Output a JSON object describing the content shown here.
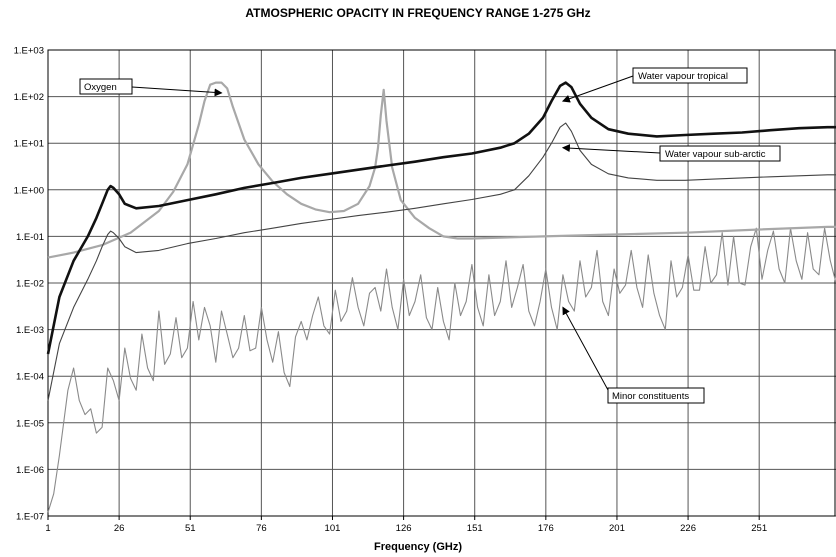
{
  "chart_data": {
    "type": "line",
    "title": "ATMOSPHERIC OPACITY IN FREQUENCY RANGE 1-275 GHz",
    "xlabel": "Frequency (GHz)",
    "ylabel": "",
    "xlim": [
      1,
      278
    ],
    "ylim": [
      1e-07,
      1000
    ],
    "y_scale": "log",
    "grid": true,
    "x_ticks": [
      "1",
      "26",
      "51",
      "76",
      "101",
      "126",
      "151",
      "176",
      "201",
      "226",
      "251"
    ],
    "y_ticks": [
      "1.E-07",
      "1.E-06",
      "1.E-05",
      "1.E-04",
      "1.E-03",
      "1.E-02",
      "1.E-01",
      "1.E+00",
      "1.E+01",
      "1.E+02",
      "1.E+03"
    ],
    "series": [
      {
        "name": "Water vapour tropical",
        "color": "#111111",
        "x": [
          1,
          5,
          10,
          15,
          18,
          20,
          22,
          23,
          24,
          26,
          28,
          32,
          40,
          50,
          60,
          70,
          80,
          90,
          100,
          110,
          120,
          130,
          140,
          150,
          160,
          165,
          170,
          175,
          178,
          181,
          183,
          185,
          188,
          192,
          198,
          205,
          215,
          225,
          235,
          245,
          255,
          265,
          275,
          278
        ],
        "values": [
          0.0003,
          0.005,
          0.03,
          0.1,
          0.25,
          0.5,
          1.0,
          1.2,
          1.1,
          0.8,
          0.5,
          0.4,
          0.45,
          0.6,
          0.8,
          1.1,
          1.4,
          1.8,
          2.2,
          2.7,
          3.3,
          4.0,
          5.0,
          6.0,
          8.0,
          10,
          16,
          35,
          80,
          170,
          200,
          160,
          70,
          35,
          20,
          16,
          14,
          15,
          16,
          17,
          19,
          21,
          22,
          22
        ]
      },
      {
        "name": "Water vapour sub-arctic",
        "color": "#444444",
        "x": [
          1,
          5,
          10,
          15,
          18,
          20,
          22,
          23,
          24,
          26,
          28,
          32,
          40,
          50,
          60,
          70,
          80,
          90,
          100,
          110,
          120,
          130,
          140,
          150,
          160,
          165,
          170,
          175,
          178,
          181,
          183,
          185,
          188,
          192,
          198,
          205,
          215,
          225,
          235,
          245,
          255,
          265,
          275,
          278
        ],
        "values": [
          3e-05,
          0.0005,
          0.003,
          0.012,
          0.03,
          0.06,
          0.11,
          0.13,
          0.12,
          0.09,
          0.06,
          0.045,
          0.05,
          0.07,
          0.09,
          0.12,
          0.15,
          0.19,
          0.23,
          0.28,
          0.33,
          0.4,
          0.5,
          0.62,
          0.8,
          1.0,
          2.0,
          5.0,
          10,
          22,
          27,
          18,
          7,
          3.5,
          2.2,
          1.8,
          1.6,
          1.6,
          1.7,
          1.8,
          1.9,
          2.0,
          2.1,
          2.1
        ]
      },
      {
        "name": "Oxygen",
        "color": "#a8a8a8",
        "x": [
          1,
          10,
          20,
          30,
          40,
          45,
          50,
          54,
          56,
          58,
          60,
          62,
          64,
          66,
          70,
          75,
          80,
          85,
          90,
          95,
          100,
          105,
          110,
          114,
          116,
          117,
          118,
          119,
          120,
          122,
          125,
          130,
          135,
          140,
          145,
          150,
          175,
          200,
          225,
          250,
          275,
          278
        ],
        "values": [
          0.035,
          0.045,
          0.065,
          0.12,
          0.35,
          0.9,
          3.5,
          25,
          80,
          180,
          200,
          200,
          150,
          60,
          12,
          3.5,
          1.5,
          0.8,
          0.5,
          0.38,
          0.33,
          0.35,
          0.5,
          1.2,
          3.0,
          8.0,
          40,
          140,
          30,
          3.0,
          0.6,
          0.25,
          0.15,
          0.1,
          0.09,
          0.09,
          0.1,
          0.11,
          0.12,
          0.14,
          0.16,
          0.16
        ]
      },
      {
        "name": "Minor constituents",
        "color": "#8a8a8a",
        "x": [
          1,
          3,
          5,
          8,
          10,
          12,
          14,
          16,
          18,
          20,
          22,
          24,
          26,
          28,
          30,
          32,
          34,
          36,
          38,
          40,
          42,
          44,
          46,
          48,
          50,
          52,
          54,
          56,
          58,
          60,
          62,
          64,
          66,
          68,
          70,
          72,
          74,
          76,
          78,
          80,
          82,
          84,
          86,
          88,
          90,
          92,
          94,
          96,
          98,
          100,
          102,
          104,
          106,
          108,
          110,
          112,
          114,
          116,
          118,
          120,
          122,
          124,
          126,
          128,
          130,
          132,
          134,
          136,
          138,
          140,
          142,
          144,
          146,
          148,
          150,
          152,
          154,
          156,
          158,
          160,
          162,
          164,
          166,
          168,
          170,
          172,
          174,
          176,
          178,
          180,
          182,
          184,
          186,
          188,
          190,
          192,
          194,
          196,
          198,
          200,
          202,
          204,
          206,
          208,
          210,
          212,
          214,
          216,
          218,
          220,
          222,
          224,
          226,
          228,
          230,
          232,
          234,
          236,
          238,
          240,
          242,
          244,
          246,
          248,
          250,
          252,
          254,
          256,
          258,
          260,
          262,
          264,
          266,
          268,
          270,
          272,
          274,
          276,
          278
        ],
        "values": [
          1.2e-07,
          3e-07,
          2e-06,
          5e-05,
          0.00015,
          3e-05,
          1.5e-05,
          2e-05,
          6e-06,
          8e-06,
          0.00015,
          8e-05,
          3e-05,
          0.0004,
          9e-05,
          5e-05,
          0.0008,
          0.00015,
          8e-05,
          0.0025,
          0.00018,
          0.0003,
          0.0018,
          0.00025,
          0.0004,
          0.004,
          0.0006,
          0.003,
          0.0012,
          0.0002,
          0.0025,
          0.0008,
          0.00025,
          0.0004,
          0.002,
          0.00035,
          0.0004,
          0.003,
          0.0006,
          0.0002,
          0.0009,
          0.00012,
          6e-05,
          0.0007,
          0.0015,
          0.0006,
          0.002,
          0.005,
          0.0012,
          0.0008,
          0.007,
          0.0015,
          0.0025,
          0.013,
          0.003,
          0.0012,
          0.006,
          0.008,
          0.0025,
          0.02,
          0.003,
          0.001,
          0.012,
          0.002,
          0.004,
          0.015,
          0.0018,
          0.001,
          0.008,
          0.0015,
          0.0006,
          0.01,
          0.002,
          0.004,
          0.025,
          0.003,
          0.0012,
          0.015,
          0.002,
          0.004,
          0.03,
          0.003,
          0.008,
          0.025,
          0.0025,
          0.0012,
          0.004,
          0.02,
          0.003,
          0.001,
          0.015,
          0.004,
          0.0025,
          0.03,
          0.005,
          0.008,
          0.05,
          0.004,
          0.002,
          0.02,
          0.006,
          0.009,
          0.05,
          0.008,
          0.003,
          0.04,
          0.006,
          0.002,
          0.001,
          0.03,
          0.005,
          0.008,
          0.04,
          0.007,
          0.007,
          0.06,
          0.01,
          0.015,
          0.12,
          0.009,
          0.1,
          0.01,
          0.009,
          0.06,
          0.15,
          0.012,
          0.05,
          0.13,
          0.02,
          0.01,
          0.15,
          0.03,
          0.012,
          0.12,
          0.02,
          0.015,
          0.15,
          0.03,
          0.01
        ]
      }
    ],
    "annotations": [
      {
        "text": "Oxygen",
        "x": 62,
        "y": 120
      },
      {
        "text": "Water vapour tropical",
        "x": 182,
        "y": 80
      },
      {
        "text": "Water vapour sub-arctic",
        "x": 182,
        "y": 8
      },
      {
        "text": "Minor constituents",
        "x": 182,
        "y": 0.003
      }
    ]
  }
}
